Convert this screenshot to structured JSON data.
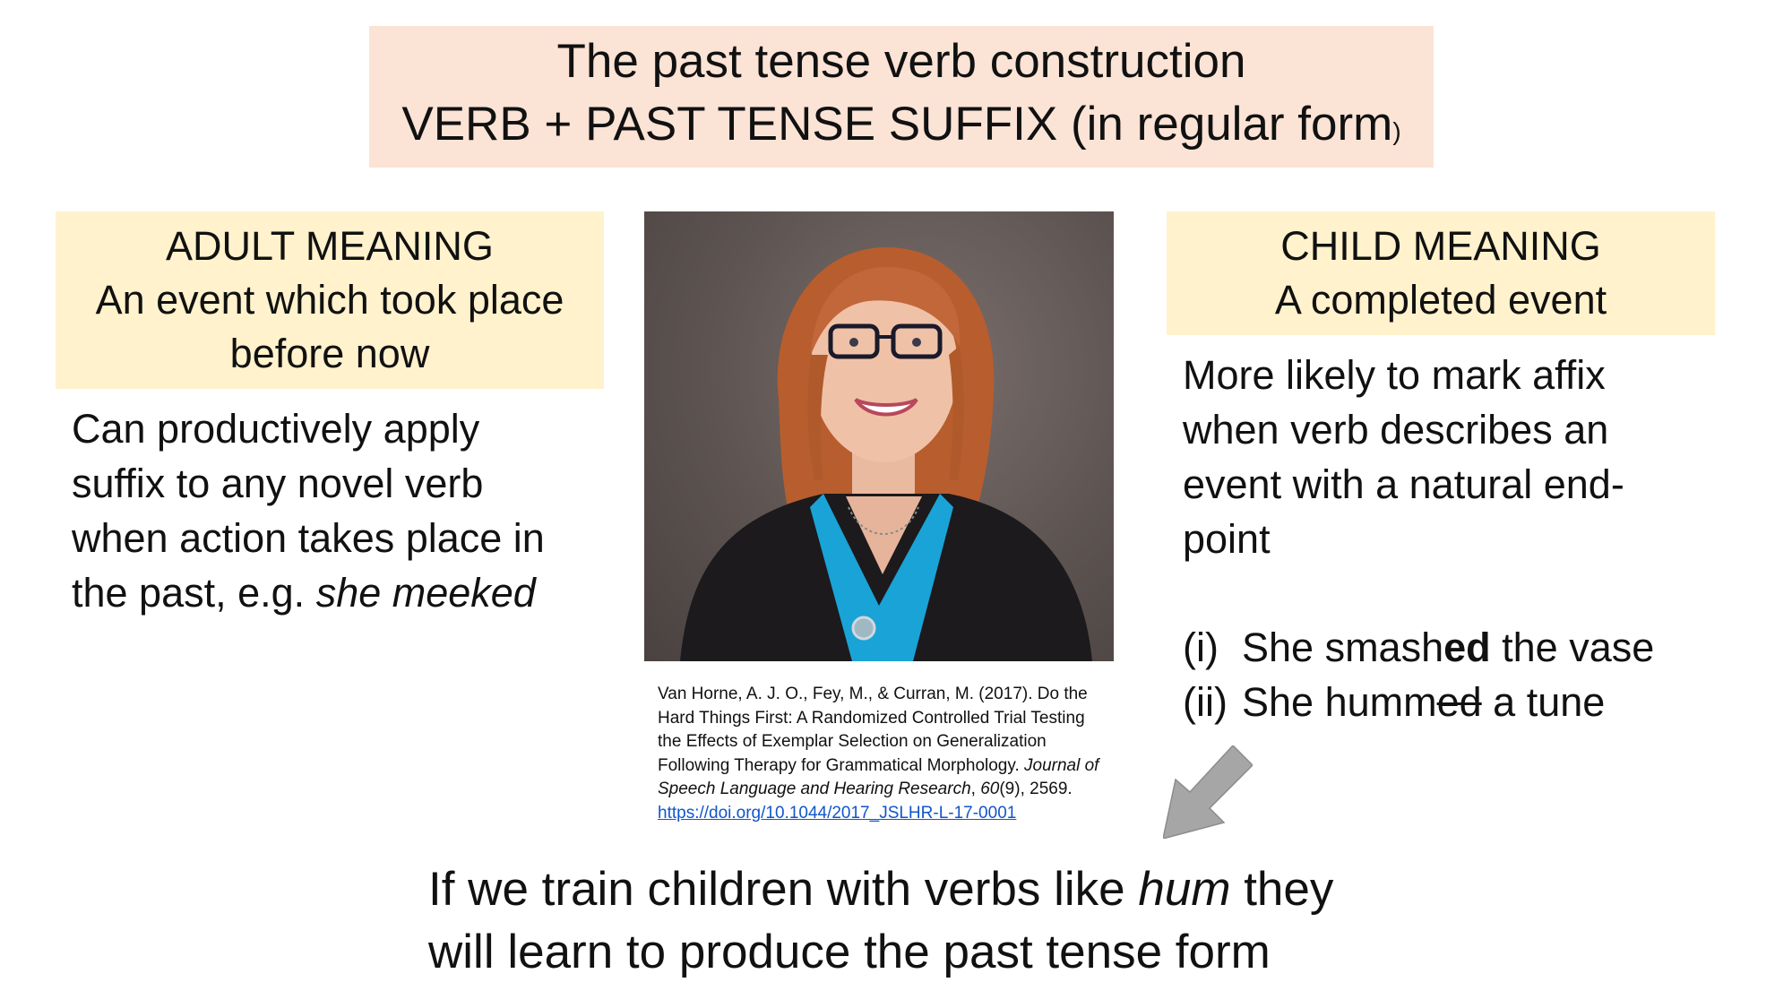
{
  "title": {
    "line1": "The past tense verb construction",
    "line2": "VERB + PAST TENSE SUFFIX (in regular form",
    "line2_paren": ")"
  },
  "adult": {
    "heading": "ADULT MEANING",
    "line2": "An event which took place",
    "line3": "before now",
    "desc_l1": "Can productively apply",
    "desc_l2": "suffix to any novel verb",
    "desc_l3": "when action takes place in",
    "desc_l4_pre": "the past, e.g. ",
    "desc_l4_em": "she meeked"
  },
  "child": {
    "heading": "CHILD MEANING",
    "line2": "A completed event",
    "desc_l1": "More likely to mark affix",
    "desc_l2": "when verb describes an",
    "desc_l3": "event with a natural end-",
    "desc_l4": "point",
    "examples": [
      {
        "num": "(i)",
        "pre": "She smash",
        "mark": "ed",
        "post": " the vase"
      },
      {
        "num": "(ii)",
        "pre": "She humm",
        "mark": "ed",
        "post": " a tune"
      }
    ]
  },
  "citation": {
    "text1": "Van Horne, A. J. O., Fey, M., & Curran, M. (2017). Do the Hard Things First: A Randomized Controlled Trial Testing the Effects of Exemplar Selection on Generalization Following Therapy for Grammatical Morphology. ",
    "journal": "Journal of Speech Language and Hearing Research",
    "sep": ", ",
    "volume": "60",
    "rest": "(9), 2569.",
    "doi": "https://doi.org/10.1044/2017_JSLHR-L-17-0001"
  },
  "conclusion": {
    "l1_pre": "If we train children with verbs like ",
    "l1_em": "hum",
    "l1_post": " they",
    "l2": "will learn to produce the past tense form"
  },
  "colors": {
    "title_bg": "#fbe3d6",
    "meaning_bg": "#fff2cc",
    "link": "#1155cc",
    "arrow": "#a6a6a6",
    "cardigan": "#1c1a1c",
    "blouse": "#1aa3d6",
    "hair": "#b85d2e"
  }
}
